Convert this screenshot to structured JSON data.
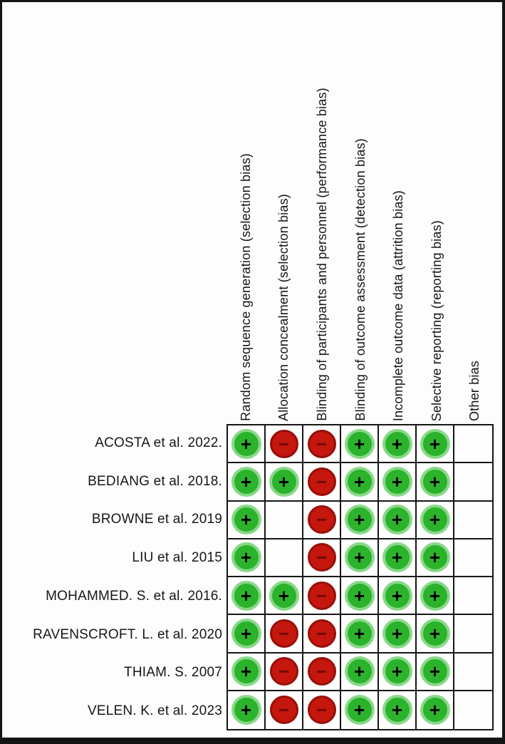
{
  "chart_data": {
    "type": "heatmap",
    "description": "Risk of bias summary grid: review authors' judgements (green plus, red minus, or blank) for each bias domain for each included study",
    "columns": [
      "Random sequence generation (selection bias)",
      "Allocation concealment (selection bias)",
      "Blinding of participants and personnel (performance bias)",
      "Blinding of outcome assessment (detection bias)",
      "Incomplete outcome data (attrition bias)",
      "Selective reporting (reporting bias)",
      "Other bias"
    ],
    "rows": [
      "ACOSTA et al. 2022.",
      "BEDIANG et al. 2018.",
      "BROWNE et al. 2019",
      "LIU et al. 2015",
      "MOHAMMED. S. et al. 2016.",
      "RAVENSCROFT. L. et al. 2020",
      "THIAM. S. 2007",
      "VELEN. K. et al. 2023"
    ],
    "values": [
      [
        "+",
        "-",
        "-",
        "+",
        "+",
        "+",
        ""
      ],
      [
        "+",
        "+",
        "-",
        "+",
        "+",
        "+",
        ""
      ],
      [
        "+",
        "",
        "-",
        "+",
        "+",
        "+",
        ""
      ],
      [
        "+",
        "",
        "-",
        "+",
        "+",
        "+",
        ""
      ],
      [
        "+",
        "+",
        "-",
        "+",
        "+",
        "+",
        ""
      ],
      [
        "+",
        "-",
        "-",
        "+",
        "+",
        "+",
        ""
      ],
      [
        "+",
        "-",
        "-",
        "+",
        "+",
        "+",
        ""
      ],
      [
        "+",
        "-",
        "-",
        "+",
        "+",
        "+",
        ""
      ]
    ],
    "colors": {
      "green": "#2bb32b",
      "green_halo": "#8ad88a",
      "red": "#c5170d",
      "red_edge": "#971009",
      "minus_glyph": "#6d0b05",
      "grid_line": "#161616"
    },
    "plus_glyph": "+",
    "minus_glyph_char": "−",
    "legend_position": "none",
    "grid": true
  }
}
